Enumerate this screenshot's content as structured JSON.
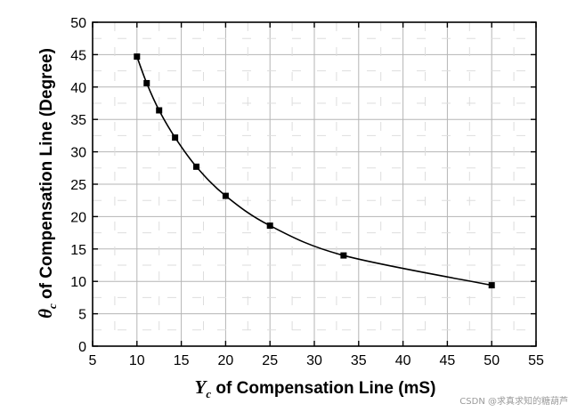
{
  "chart_data": {
    "type": "line",
    "title": "",
    "xlabel_symbol": "Y",
    "xlabel_sub": "c",
    "xlabel_text": " of Compensation Line (mS)",
    "ylabel_symbol": "θ",
    "ylabel_sub": "c",
    "ylabel_text": " of Compensation Line (Degree)",
    "xlim": [
      5,
      55
    ],
    "ylim": [
      0,
      50
    ],
    "xticks": [
      5,
      10,
      15,
      20,
      25,
      30,
      35,
      40,
      45,
      50,
      55
    ],
    "yticks": [
      0,
      5,
      10,
      15,
      20,
      25,
      30,
      35,
      40,
      45,
      50
    ],
    "grid": true,
    "marker": "square",
    "series": [
      {
        "name": "θc",
        "x": [
          10,
          11.1,
          12.5,
          14.3,
          16.7,
          20,
          25,
          33.3,
          50
        ],
        "y": [
          44.7,
          40.6,
          36.4,
          32.2,
          27.7,
          23.2,
          18.6,
          14.0,
          9.4
        ]
      }
    ]
  },
  "watermark": "CSDN @求真求知的糖葫芦"
}
